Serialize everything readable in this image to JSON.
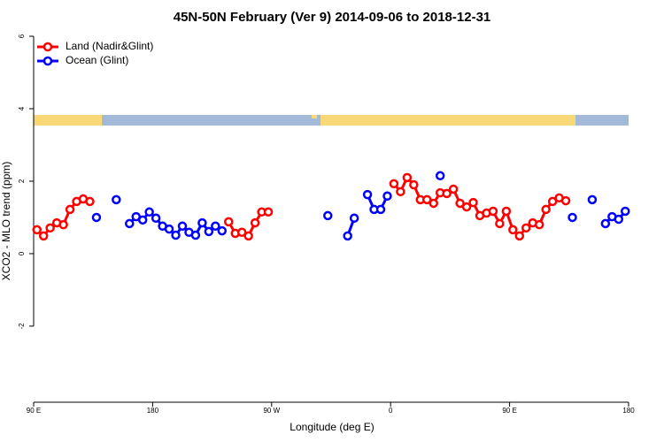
{
  "chart_data": {
    "type": "line",
    "title": "45N-50N February (Ver 9)   2014-09-06 to 2018-12-31",
    "x_label": "Longitude (deg E)",
    "y_label": "XCO2 - MLO trend (ppm)",
    "xlim": [
      90,
      540
    ],
    "ylim": [
      -4.1,
      6
    ],
    "xticks": [
      {
        "value": 90,
        "label": "90 E"
      },
      {
        "value": 180,
        "label": "180"
      },
      {
        "value": 270,
        "label": "90 W"
      },
      {
        "value": 360,
        "label": "0"
      },
      {
        "value": 450,
        "label": "90 E"
      },
      {
        "value": 540,
        "label": "180"
      }
    ],
    "yticks": [
      -2,
      0,
      2,
      4,
      6
    ],
    "legend": "top-left",
    "series": [
      {
        "name": "Land (Nadir&Glint)",
        "color": "#ff0000",
        "x": [
          92.5,
          97.5,
          102.5,
          107.5,
          112.5,
          117.5,
          122.5,
          127.5,
          132.5,
          237.5,
          242.5,
          247.5,
          252.5,
          257.5,
          262.5,
          267.5,
          362.5,
          367.5,
          372.5,
          377.5,
          382.5,
          387.5,
          392.5,
          397.5,
          402.5,
          407.5,
          412.5,
          417.5,
          422.5,
          427.5,
          432.5,
          437.5,
          442.5,
          447.5,
          452.5,
          457.5,
          462.5,
          467.5,
          472.5,
          477.5,
          482.5,
          487.5,
          492.5
        ],
        "values": [
          0.66,
          0.49,
          0.71,
          0.85,
          0.8,
          1.22,
          1.44,
          1.51,
          1.44,
          0.88,
          0.56,
          0.59,
          0.49,
          0.85,
          1.15,
          1.15,
          1.93,
          1.71,
          2.1,
          1.9,
          1.49,
          1.49,
          1.39,
          1.68,
          1.66,
          1.78,
          1.39,
          1.29,
          1.41,
          1.05,
          1.12,
          1.17,
          0.83,
          1.17,
          0.66,
          0.49,
          0.71,
          0.85,
          0.8,
          1.22,
          1.44,
          1.54,
          1.46
        ]
      },
      {
        "name": "Ocean (Glint)",
        "color": "#0000ff",
        "x": [
          137.5,
          152.5,
          162.5,
          167.5,
          172.5,
          177.5,
          182.5,
          187.5,
          192.5,
          197.5,
          202.5,
          207.5,
          212.5,
          217.5,
          222.5,
          227.5,
          232.5,
          312.5,
          327.5,
          332.5,
          342.5,
          347.5,
          352.5,
          357.5,
          397.5,
          497.5,
          512.5,
          522.5,
          527.5,
          532.5,
          537.5
        ],
        "values": [
          1.0,
          1.49,
          0.83,
          1.02,
          0.93,
          1.15,
          0.98,
          0.76,
          0.68,
          0.51,
          0.76,
          0.59,
          0.51,
          0.85,
          0.61,
          0.76,
          0.63,
          1.05,
          0.49,
          0.98,
          1.63,
          1.22,
          1.22,
          1.59,
          2.15,
          1.0,
          1.49,
          0.83,
          1.02,
          0.95,
          1.17
        ]
      }
    ]
  }
}
